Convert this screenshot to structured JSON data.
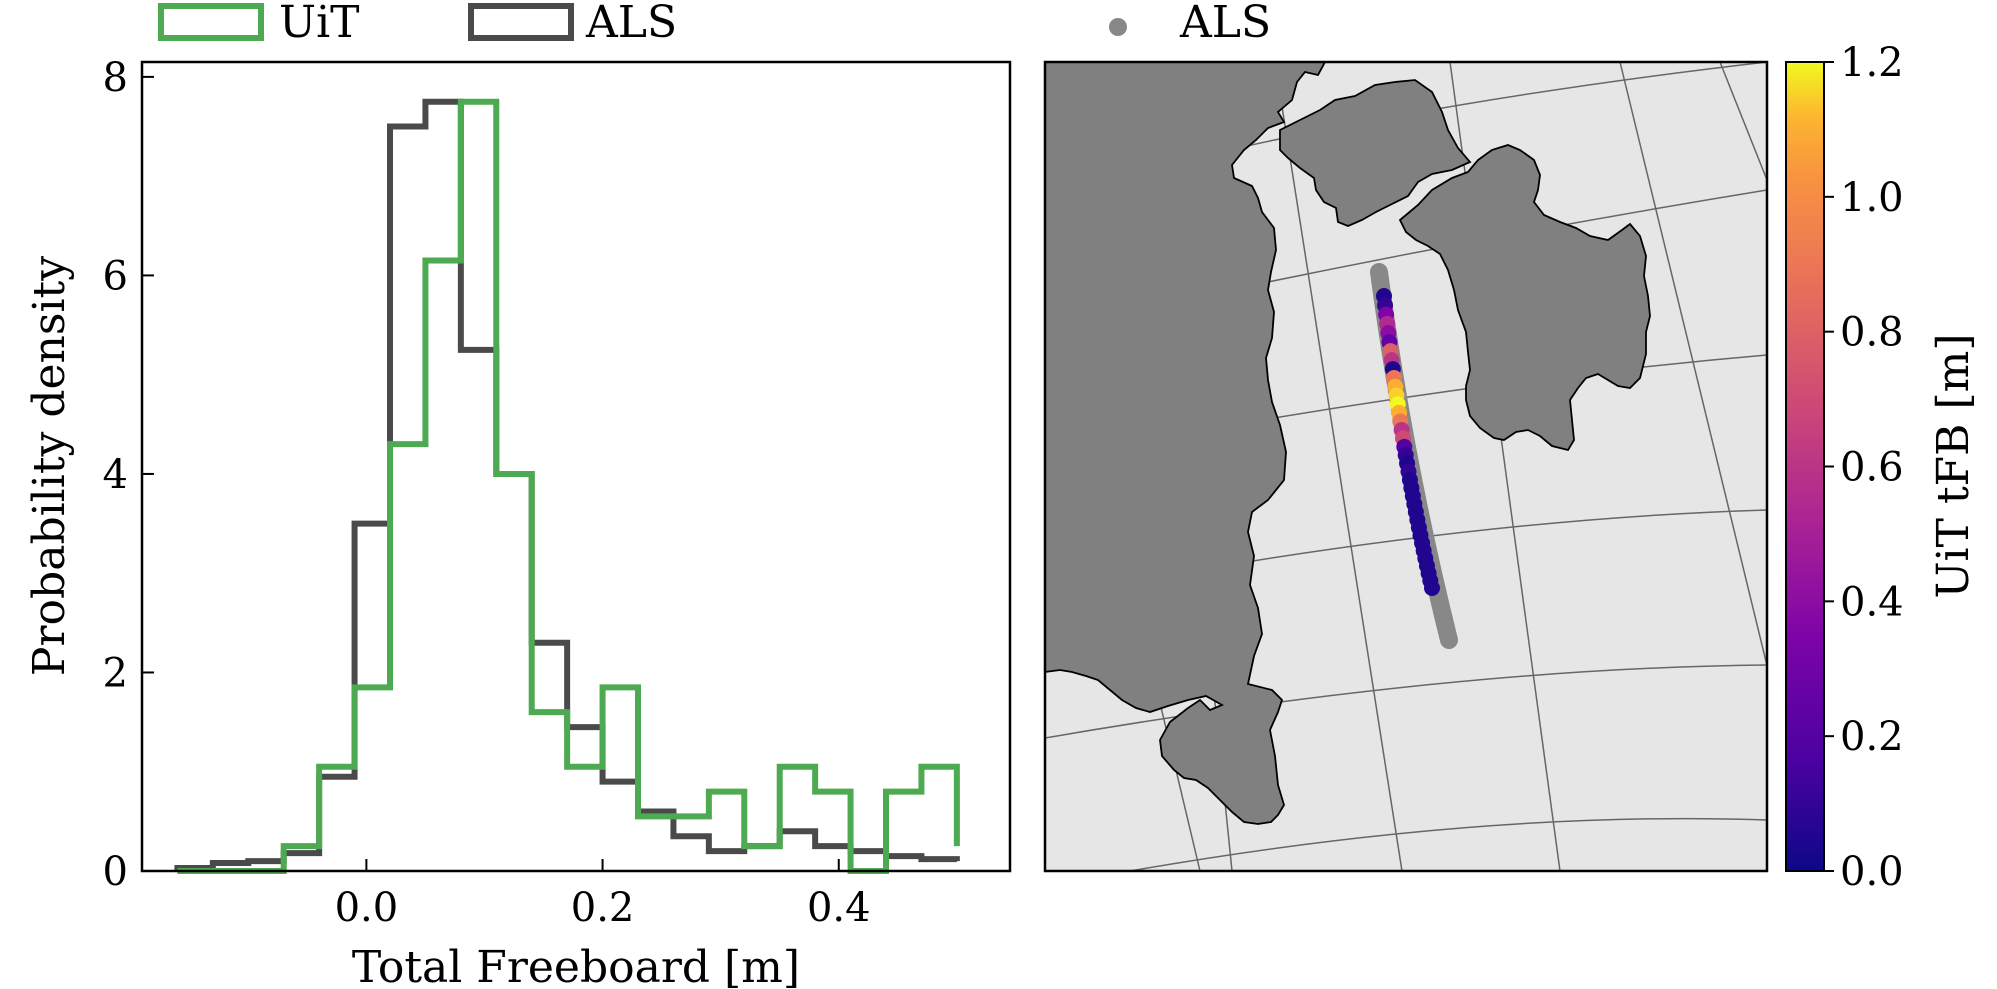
{
  "chart_data": [
    {
      "type": "histogram",
      "xlabel": "Total Freeboard [m]",
      "ylabel": "Probability density",
      "xlim": [
        -0.19,
        0.545
      ],
      "ylim": [
        0,
        8.15
      ],
      "xticks": [
        0.0,
        0.2,
        0.4
      ],
      "xtick_labels": [
        "0.0",
        "0.2",
        "0.4"
      ],
      "yticks": [
        0,
        2,
        4,
        6,
        8
      ],
      "ytick_labels": [
        "0",
        "2",
        "4",
        "6",
        "8"
      ],
      "legend": {
        "placement": "top-left-outside",
        "orientation": "horizontal"
      },
      "series": [
        {
          "name": "UiT",
          "color": "#4daa50",
          "edges": [
            -0.16,
            -0.13,
            -0.1,
            -0.07,
            -0.04,
            -0.01,
            0.02,
            0.05,
            0.08,
            0.11,
            0.14,
            0.17,
            0.2,
            0.23,
            0.26,
            0.29,
            0.32,
            0.35,
            0.38,
            0.41,
            0.44,
            0.47,
            0.5
          ],
          "values": [
            0,
            0,
            0,
            0.25,
            1.05,
            1.85,
            4.3,
            6.15,
            7.75,
            4.0,
            1.6,
            1.05,
            1.85,
            0.55,
            0.55,
            0.8,
            0.25,
            1.05,
            0.8,
            0,
            0.8,
            1.05,
            0.25
          ]
        },
        {
          "name": "ALS",
          "color": "#4a4a4a",
          "edges": [
            -0.16,
            -0.13,
            -0.1,
            -0.07,
            -0.04,
            -0.01,
            0.02,
            0.05,
            0.08,
            0.11,
            0.14,
            0.17,
            0.2,
            0.23,
            0.26,
            0.29,
            0.32,
            0.35,
            0.38,
            0.41,
            0.44,
            0.47,
            0.5
          ],
          "values": [
            0.03,
            0.08,
            0.1,
            0.18,
            0.95,
            3.5,
            7.5,
            7.75,
            5.25,
            4.0,
            2.3,
            1.45,
            0.9,
            0.6,
            0.35,
            0.2,
            0.25,
            0.4,
            0.25,
            0.2,
            0.15,
            0.12,
            0.1
          ]
        }
      ]
    },
    {
      "type": "scatter",
      "subtype": "map",
      "legend": {
        "placement": "top-outside",
        "entries": [
          {
            "name": "ALS",
            "color": "#888888",
            "marker": "circle"
          }
        ]
      },
      "colorbar": {
        "label": "UiT tFB [m]",
        "colormap": "plasma",
        "range": [
          0.0,
          1.2
        ],
        "ticks": [
          0.0,
          0.2,
          0.4,
          0.6,
          0.8,
          1.0,
          1.2
        ],
        "tick_labels": [
          "0.0",
          "0.2",
          "0.4",
          "0.6",
          "0.8",
          "1.0",
          "1.2"
        ]
      },
      "colors": {
        "ocean": "#e6e6e6",
        "land": "#808080",
        "coast": "#000000",
        "graticule": "#666666",
        "als_track": "#888888"
      },
      "uit_track_values": [
        0.05,
        0.1,
        0.35,
        0.55,
        0.4,
        0.25,
        0.8,
        0.6,
        0.05,
        0.9,
        1.1,
        1.15,
        1.2,
        1.1,
        0.9,
        0.6,
        0.7,
        0.2,
        0.1,
        0.05,
        0.1,
        0.05,
        0.05,
        0.05,
        0.05,
        0.05,
        0.05,
        0.05,
        0.05,
        0.05,
        0.05,
        0.05,
        0.05,
        0.05,
        0.05,
        0.05
      ]
    }
  ],
  "legend_labels": {
    "uit": "UiT",
    "als": "ALS",
    "map_als": "ALS"
  }
}
